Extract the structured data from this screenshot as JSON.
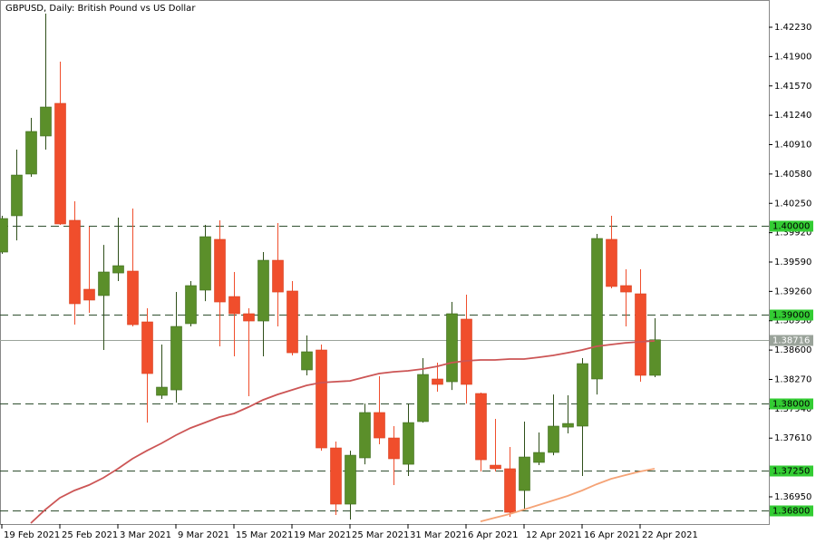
{
  "chart_data": {
    "type": "candlestick",
    "title": "GBPUSD, Daily:  British Pound vs US Dollar",
    "categories": [
      "19 Feb 2021",
      null,
      null,
      null,
      "25 Feb 2021",
      null,
      null,
      null,
      "3 Mar 2021",
      null,
      null,
      null,
      "9 Mar 2021",
      null,
      null,
      null,
      "15 Mar 2021",
      null,
      null,
      null,
      "19 Mar 2021",
      null,
      null,
      null,
      "25 Mar 2021",
      null,
      null,
      null,
      "31 Mar 2021",
      null,
      null,
      null,
      "6 Apr 2021",
      null,
      null,
      null,
      "12 Apr 2021",
      null,
      null,
      null,
      "16 Apr 2021",
      null,
      null,
      null,
      "22 Apr 2021",
      null
    ],
    "open": [
      1.39702,
      1.4011,
      1.40579,
      1.41007,
      1.41374,
      1.40059,
      1.39284,
      1.39213,
      1.39467,
      1.39488,
      1.38917,
      1.38091,
      1.38152,
      1.38897,
      1.39274,
      1.39845,
      1.39202,
      1.39009,
      1.38927,
      1.3961,
      1.39264,
      1.38377,
      1.38601,
      1.375,
      1.36868,
      1.37388,
      1.37898,
      1.37612,
      1.37316,
      1.37796,
      1.38275,
      1.38244,
      1.38948,
      1.38112,
      1.37306,
      1.37266,
      1.37021,
      1.37337,
      1.37449,
      1.37734,
      1.37745,
      1.38275,
      1.39845,
      1.39325,
      1.39233,
      1.38316
    ],
    "high": [
      1.4011,
      1.40854,
      1.41211,
      1.42383,
      1.41843,
      1.40273,
      1.39987,
      1.39783,
      1.40089,
      1.40191,
      1.3907,
      1.38662,
      1.39253,
      1.39376,
      1.40008,
      1.40059,
      1.39478,
      1.3907,
      1.39702,
      1.40028,
      1.39376,
      1.38764,
      1.38662,
      1.37571,
      1.37469,
      1.37999,
      1.38305,
      1.37745,
      1.37999,
      1.38509,
      1.38458,
      1.39141,
      1.39223,
      1.38122,
      1.37826,
      1.3751,
      1.37796,
      1.37673,
      1.38101,
      1.38091,
      1.38509,
      1.39906,
      1.4011,
      1.39508,
      1.39508,
      1.38958
    ],
    "low": [
      1.39682,
      1.39834,
      1.40548,
      1.40854,
      1.40008,
      1.38886,
      1.39019,
      1.38601,
      1.39376,
      1.38866,
      1.37785,
      1.38051,
      1.3801,
      1.38866,
      1.39151,
      1.38642,
      1.3853,
      1.38081,
      1.3853,
      1.38866,
      1.3854,
      1.38316,
      1.37469,
      1.36746,
      1.36695,
      1.37316,
      1.37541,
      1.37082,
      1.37184,
      1.37785,
      1.38132,
      1.38152,
      1.37999,
      1.37235,
      1.37235,
      1.36725,
      1.36807,
      1.37306,
      1.37418,
      1.37663,
      1.37184,
      1.38101,
      1.39294,
      1.38866,
      1.38244,
      1.38295
    ],
    "close": [
      1.40079,
      1.40568,
      1.41058,
      1.41333,
      1.40018,
      1.39121,
      1.39162,
      1.39478,
      1.39549,
      1.38886,
      1.38336,
      1.38183,
      1.38866,
      1.39325,
      1.39875,
      1.39141,
      1.39009,
      1.38927,
      1.3961,
      1.39253,
      1.3857,
      1.38581,
      1.375,
      1.36868,
      1.37418,
      1.37898,
      1.37612,
      1.37378,
      1.37785,
      1.38326,
      1.38214,
      1.39009,
      1.38214,
      1.37367,
      1.37266,
      1.36776,
      1.37398,
      1.37449,
      1.37745,
      1.37775,
      1.38448,
      1.39855,
      1.39315,
      1.39253,
      1.38316,
      1.38716
    ],
    "up_color": "#5b8f2a",
    "down_color": "#f04e2c",
    "lines": [
      {
        "color": "#cc5555",
        "values": [
          null,
          null,
          1.36654,
          1.36807,
          1.36939,
          1.37021,
          1.37082,
          1.37164,
          1.37266,
          1.37378,
          1.37469,
          1.37551,
          1.37643,
          1.37724,
          1.37785,
          1.37847,
          1.37887,
          1.37959,
          1.3804,
          1.38101,
          1.38152,
          1.38203,
          1.38234,
          1.38244,
          1.38254,
          1.38295,
          1.38336,
          1.38356,
          1.38367,
          1.38387,
          1.38417,
          1.38458,
          1.38479,
          1.38489,
          1.38489,
          1.38499,
          1.38499,
          1.38519,
          1.3854,
          1.3857,
          1.38601,
          1.38642,
          1.38662,
          1.38682,
          1.38693,
          1.38703
        ]
      },
      {
        "color": "#f5a376",
        "values": [
          null,
          null,
          null,
          null,
          null,
          null,
          null,
          null,
          null,
          null,
          null,
          null,
          null,
          null,
          null,
          null,
          null,
          null,
          null,
          null,
          null,
          null,
          null,
          null,
          null,
          null,
          null,
          null,
          null,
          null,
          null,
          null,
          null,
          1.36674,
          1.36715,
          1.36756,
          1.36807,
          1.36858,
          1.36909,
          1.3696,
          1.37021,
          1.37092,
          1.37153,
          1.37194,
          1.37235,
          1.37266
        ]
      }
    ],
    "ylim": [
      1.36644,
      1.42536
    ],
    "yticks": [
      {
        "value": 1.4223,
        "label": "1.42230"
      },
      {
        "value": 1.419,
        "label": "1.41900"
      },
      {
        "value": 1.4157,
        "label": "1.41570"
      },
      {
        "value": 1.4124,
        "label": "1.41240"
      },
      {
        "value": 1.4091,
        "label": "1.40910"
      },
      {
        "value": 1.4058,
        "label": "1.40580"
      },
      {
        "value": 1.4025,
        "label": "1.40250"
      },
      {
        "value": 1.3992,
        "label": "1.39920"
      },
      {
        "value": 1.3959,
        "label": "1.39590"
      },
      {
        "value": 1.3926,
        "label": "1.39260"
      },
      {
        "value": 1.3893,
        "label": "1.38930"
      },
      {
        "value": 1.386,
        "label": "1.38600"
      },
      {
        "value": 1.3827,
        "label": "1.38270"
      },
      {
        "value": 1.3794,
        "label": "1.37940"
      },
      {
        "value": 1.3761,
        "label": "1.37610"
      },
      {
        "value": 1.3695,
        "label": "1.36950"
      }
    ],
    "levels": [
      {
        "value": 1.4,
        "label": "1.40000"
      },
      {
        "value": 1.39,
        "label": "1.39000"
      },
      {
        "value": 1.38,
        "label": "1.38000"
      },
      {
        "value": 1.3725,
        "label": "1.37250"
      },
      {
        "value": 1.368,
        "label": "1.36800"
      }
    ],
    "level_color": "#33cc33",
    "current_price": {
      "value": 1.38716,
      "label": "1.38716"
    },
    "current_color": "#9aa39a"
  }
}
